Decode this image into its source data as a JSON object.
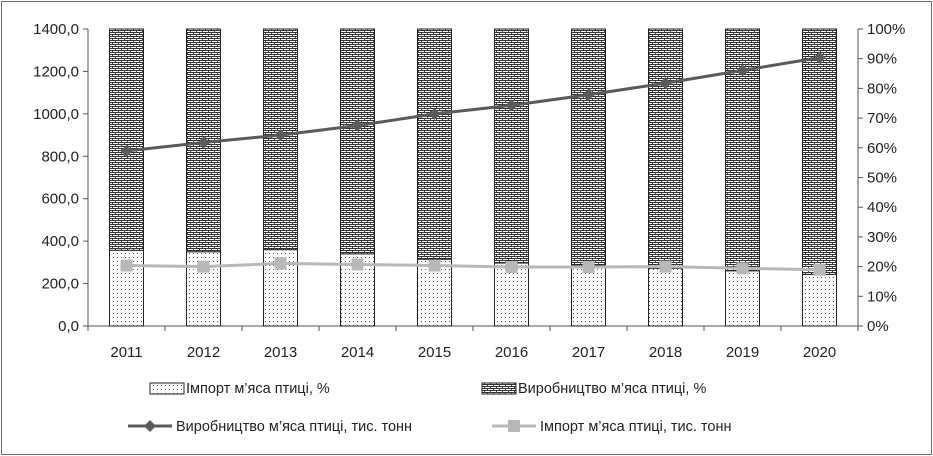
{
  "chart_data": {
    "type": "bar",
    "categories": [
      "2011",
      "2012",
      "2013",
      "2014",
      "2015",
      "2016",
      "2017",
      "2018",
      "2019",
      "2020"
    ],
    "left_axis": {
      "ticks": [
        "0,0",
        "200,0",
        "400,0",
        "600,0",
        "800,0",
        "1000,0",
        "1200,0",
        "1400,0"
      ],
      "ylim": [
        0,
        1400
      ]
    },
    "right_axis": {
      "ticks": [
        "0%",
        "10%",
        "20%",
        "30%",
        "40%",
        "50%",
        "60%",
        "70%",
        "80%",
        "90%",
        "100%"
      ],
      "ylim": [
        0,
        100
      ]
    },
    "series": [
      {
        "name": "Імпорт м’яса птиці, %",
        "kind": "stacked-bar",
        "axis": "right",
        "pattern": "dots",
        "values": [
          25.5,
          25,
          25.7,
          24.3,
          22.5,
          21.2,
          20.6,
          19.4,
          18.6,
          17.4
        ]
      },
      {
        "name": "Виробництво м’яса птиці, %",
        "kind": "stacked-bar",
        "axis": "right",
        "pattern": "bricks",
        "values": [
          74.5,
          75,
          74.3,
          75.7,
          77.5,
          78.8,
          79.4,
          80.6,
          81.4,
          82.6
        ]
      },
      {
        "name": "Виробництво м’яса птиці, тис. тонн",
        "kind": "line",
        "axis": "left",
        "color": "#5a5a5a",
        "marker": "diamond",
        "values": [
          825,
          865,
          900,
          945,
          1000,
          1040,
          1090,
          1145,
          1205,
          1265
        ]
      },
      {
        "name": "Імпорт м’яса птиці, тис. тонн",
        "kind": "line",
        "axis": "left",
        "color": "#b8b8b8",
        "marker": "square",
        "values": [
          285,
          280,
          295,
          290,
          285,
          278,
          278,
          280,
          272,
          265
        ]
      }
    ],
    "grid": false,
    "legend_position": "bottom"
  }
}
